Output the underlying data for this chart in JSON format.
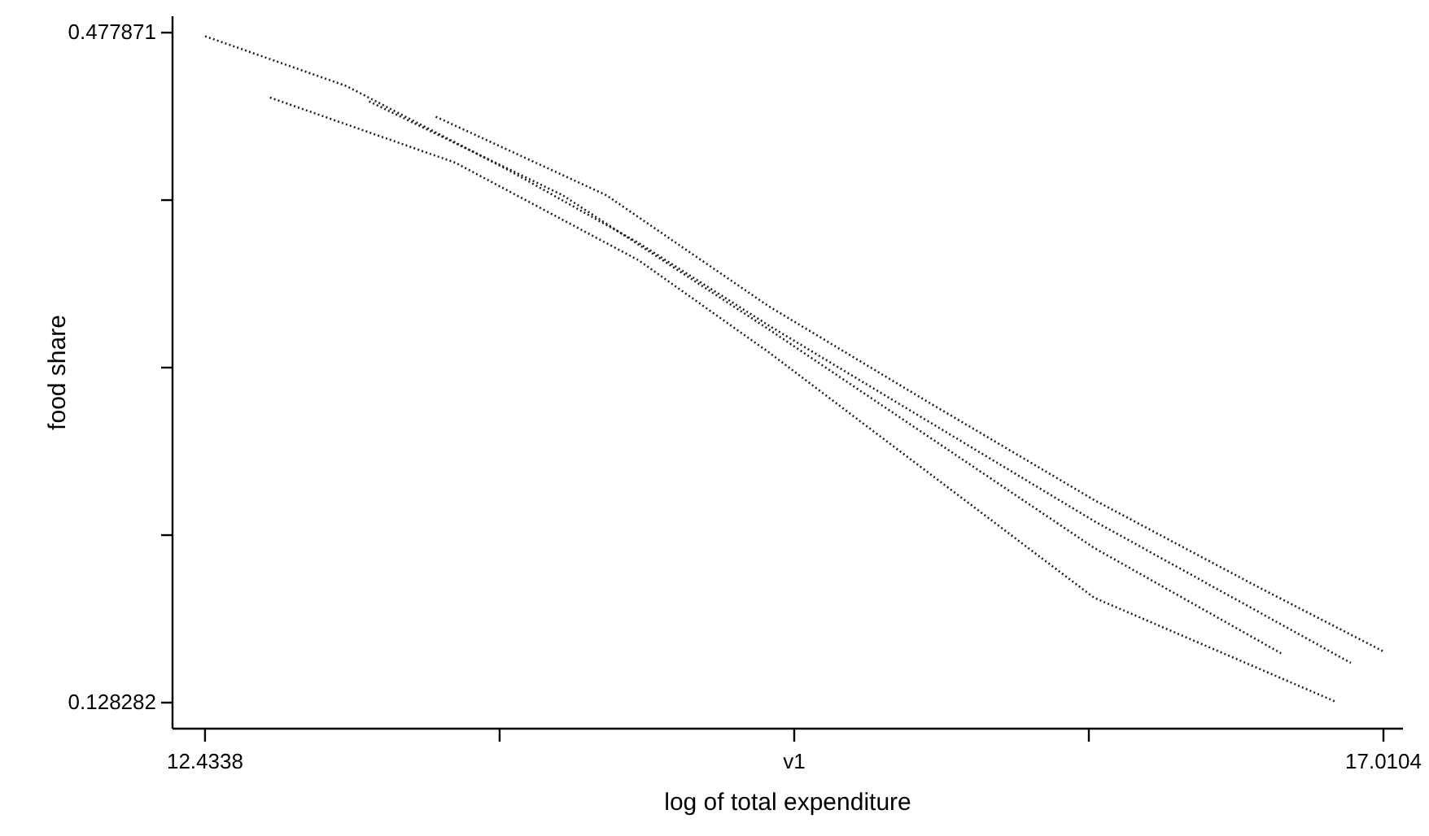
{
  "chart_data": {
    "type": "line",
    "xlabel": "log of total expenditure",
    "ylabel": "food share",
    "xlim": [
      12.3076,
      17.0862
    ],
    "ylim": [
      0.1147,
      0.4864
    ],
    "xticks": [
      12.4338,
      {
        "value": 13.578,
        "label": null
      },
      {
        "value": 14.7221,
        "label": "v1"
      },
      {
        "value": 15.8663,
        "label": null
      },
      17.0104
    ],
    "yticks": [
      0.128282,
      {
        "value": 0.215679,
        "label": null
      },
      {
        "value": 0.303077,
        "label": null
      },
      {
        "value": 0.390474,
        "label": null
      },
      0.477871
    ],
    "grid": false,
    "marker": "none",
    "line_style": "dotted",
    "series": [
      {
        "color": "#222222",
        "x": [
          12.434,
          12.983,
          13.614,
          14.119,
          14.624,
          15.887,
          16.884
        ],
        "values": [
          0.476,
          0.45,
          0.406,
          0.368,
          0.325,
          0.223,
          0.149
        ]
      },
      {
        "color": "#222222",
        "x": [
          12.686,
          13.406,
          14.119,
          14.624,
          15.887,
          16.821
        ],
        "values": [
          0.444,
          0.41,
          0.359,
          0.311,
          0.183,
          0.129
        ]
      },
      {
        "color": "#222222",
        "x": [
          13.071,
          13.823,
          14.624,
          15.887,
          16.613
        ],
        "values": [
          0.442,
          0.393,
          0.323,
          0.209,
          0.154
        ]
      },
      {
        "color": "#222222",
        "x": [
          13.33,
          13.993,
          14.624,
          15.256,
          15.887,
          16.518,
          17.0104
        ],
        "values": [
          0.434,
          0.393,
          0.335,
          0.284,
          0.234,
          0.189,
          0.155
        ]
      }
    ]
  }
}
